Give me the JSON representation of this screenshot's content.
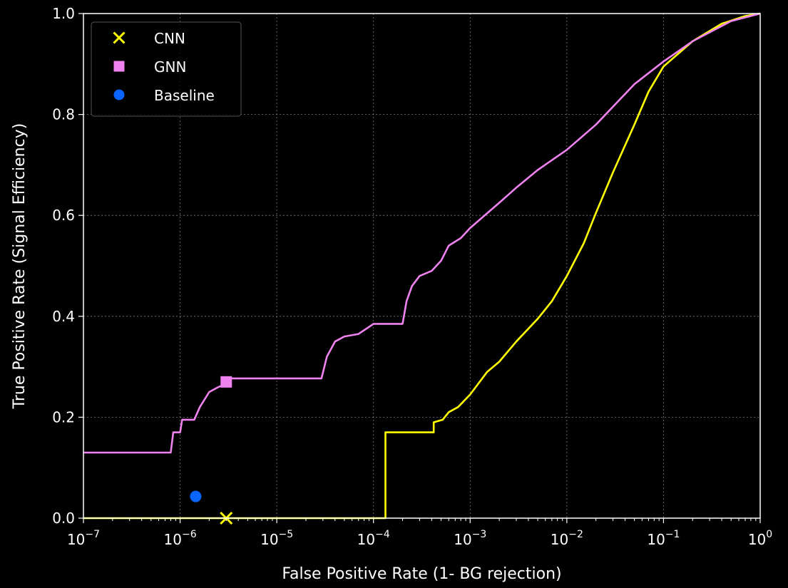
{
  "chart_data": {
    "type": "line",
    "title": "",
    "xlabel": "False Positive Rate (1- BG rejection)",
    "ylabel": "True Positive Rate (Signal Efficiency)",
    "xscale": "log",
    "xlim": [
      1e-07,
      1
    ],
    "ylim": [
      0.0,
      1.0
    ],
    "grid": true,
    "legend_position": "top-left",
    "x_ticks": [
      {
        "value": 1e-07,
        "base": "10",
        "exp": "−7"
      },
      {
        "value": 1e-06,
        "base": "10",
        "exp": "−6"
      },
      {
        "value": 1e-05,
        "base": "10",
        "exp": "−5"
      },
      {
        "value": 0.0001,
        "base": "10",
        "exp": "−4"
      },
      {
        "value": 0.001,
        "base": "10",
        "exp": "−3"
      },
      {
        "value": 0.01,
        "base": "10",
        "exp": "−2"
      },
      {
        "value": 0.1,
        "base": "10",
        "exp": "−1"
      },
      {
        "value": 1,
        "base": "10",
        "exp": "0"
      }
    ],
    "y_ticks": [
      {
        "value": 0.0,
        "label": "0.0"
      },
      {
        "value": 0.2,
        "label": "0.2"
      },
      {
        "value": 0.4,
        "label": "0.4"
      },
      {
        "value": 0.6,
        "label": "0.6"
      },
      {
        "value": 0.8,
        "label": "0.8"
      },
      {
        "value": 1.0,
        "label": "1.0"
      }
    ],
    "series": [
      {
        "name": "CNN",
        "color": "#ffff00",
        "x": [
          1e-07,
          0.000133,
          0.000133,
          0.00042,
          0.00042,
          0.00052,
          0.0006,
          0.00075,
          0.001,
          0.0015,
          0.002,
          0.003,
          0.005,
          0.007,
          0.01,
          0.015,
          0.02,
          0.03,
          0.05,
          0.07,
          0.1,
          0.2,
          0.4,
          0.7,
          1.0
        ],
        "y": [
          0.0,
          0.0,
          0.17,
          0.17,
          0.19,
          0.195,
          0.21,
          0.22,
          0.245,
          0.29,
          0.31,
          0.35,
          0.395,
          0.43,
          0.48,
          0.545,
          0.605,
          0.685,
          0.78,
          0.845,
          0.895,
          0.945,
          0.98,
          0.995,
          1.0
        ]
      },
      {
        "name": "GNN",
        "color": "#ee82ee",
        "x": [
          1e-07,
          8e-07,
          8.5e-07,
          1e-06,
          1.05e-06,
          1.4e-06,
          1.6e-06,
          2e-06,
          2.5e-06,
          2.9e-06,
          3e-06,
          2.9e-05,
          3.3e-05,
          4e-05,
          5e-05,
          7e-05,
          0.0001,
          0.0002,
          0.00022,
          0.00025,
          0.0003,
          0.0004,
          0.0005,
          0.0006,
          0.0008,
          0.001,
          0.002,
          0.003,
          0.005,
          0.01,
          0.02,
          0.05,
          0.1,
          0.2,
          0.5,
          1.0
        ],
        "y": [
          0.13,
          0.13,
          0.17,
          0.17,
          0.195,
          0.195,
          0.22,
          0.25,
          0.26,
          0.265,
          0.277,
          0.277,
          0.32,
          0.35,
          0.36,
          0.365,
          0.385,
          0.385,
          0.43,
          0.46,
          0.48,
          0.49,
          0.51,
          0.54,
          0.555,
          0.575,
          0.625,
          0.655,
          0.69,
          0.73,
          0.78,
          0.86,
          0.905,
          0.945,
          0.985,
          1.0
        ]
      }
    ],
    "markers": [
      {
        "name": "CNN",
        "shape": "x",
        "color": "#ffff00",
        "x": 3e-06,
        "y": 0.0
      },
      {
        "name": "GNN",
        "shape": "square",
        "color": "#ee82ee",
        "x": 3e-06,
        "y": 0.27
      },
      {
        "name": "Baseline",
        "shape": "circle",
        "color": "#0a64ff",
        "x": 1.45e-06,
        "y": 0.043
      }
    ],
    "legend": [
      {
        "label": "CNN",
        "shape": "x",
        "color": "#ffff00"
      },
      {
        "label": "GNN",
        "shape": "square",
        "color": "#ee82ee"
      },
      {
        "label": "Baseline",
        "shape": "circle",
        "color": "#0a64ff"
      }
    ]
  }
}
